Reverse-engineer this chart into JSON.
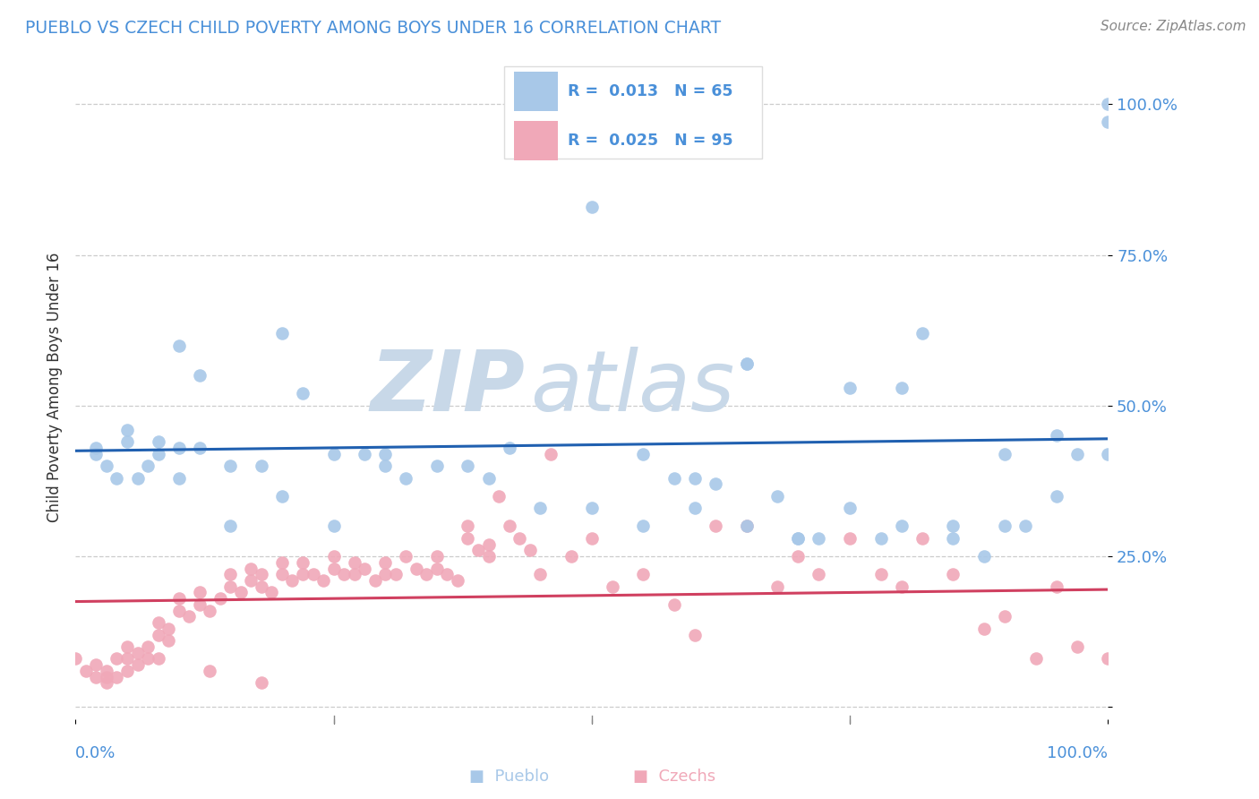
{
  "title": "PUEBLO VS CZECH CHILD POVERTY AMONG BOYS UNDER 16 CORRELATION CHART",
  "source": "Source: ZipAtlas.com",
  "ylabel": "Child Poverty Among Boys Under 16",
  "xlim": [
    0.0,
    1.0
  ],
  "ylim": [
    -0.02,
    1.08
  ],
  "pueblo_R": 0.013,
  "pueblo_N": 65,
  "czech_R": 0.025,
  "czech_N": 95,
  "pueblo_color": "#a8c8e8",
  "pueblo_line_color": "#2060b0",
  "czech_color": "#f0a8b8",
  "czech_line_color": "#d04060",
  "background_color": "#ffffff",
  "watermark_zip_color": "#c8d8e8",
  "watermark_atlas_color": "#c8d8e8",
  "grid_color": "#cccccc",
  "tick_color": "#4a90d9",
  "title_color": "#4a90d9",
  "ytick_positions": [
    0.0,
    0.25,
    0.5,
    0.75,
    1.0
  ],
  "ytick_labels": [
    "",
    "25.0%",
    "50.0%",
    "75.0%",
    "100.0%"
  ],
  "xtick_positions": [
    0.0,
    0.25,
    0.5,
    0.75,
    1.0
  ],
  "pueblo_trend_y0": 0.425,
  "pueblo_trend_y1": 0.445,
  "czech_trend_y0": 0.175,
  "czech_trend_y1": 0.195,
  "pueblo_points_x": [
    0.02,
    0.05,
    0.08,
    0.1,
    0.12,
    0.02,
    0.03,
    0.04,
    0.05,
    0.06,
    0.07,
    0.08,
    0.1,
    0.12,
    0.15,
    0.18,
    0.2,
    0.22,
    0.25,
    0.28,
    0.3,
    0.3,
    0.32,
    0.35,
    0.38,
    0.4,
    0.42,
    0.5,
    0.55,
    0.58,
    0.6,
    0.62,
    0.65,
    0.65,
    0.68,
    0.7,
    0.72,
    0.75,
    0.78,
    0.8,
    0.82,
    0.85,
    0.88,
    0.9,
    0.92,
    0.95,
    0.97,
    1.0,
    1.0,
    0.15,
    0.2,
    0.25,
    0.5,
    0.55,
    0.6,
    0.65,
    0.7,
    0.75,
    0.8,
    0.85,
    0.9,
    0.95,
    1.0,
    0.45,
    0.1
  ],
  "pueblo_points_y": [
    0.43,
    0.46,
    0.44,
    0.43,
    0.43,
    0.42,
    0.4,
    0.38,
    0.44,
    0.38,
    0.4,
    0.42,
    0.6,
    0.55,
    0.4,
    0.4,
    0.62,
    0.52,
    0.42,
    0.42,
    0.42,
    0.4,
    0.38,
    0.4,
    0.4,
    0.38,
    0.43,
    0.83,
    0.42,
    0.38,
    0.38,
    0.37,
    0.57,
    0.3,
    0.35,
    0.28,
    0.28,
    0.33,
    0.28,
    0.53,
    0.62,
    0.3,
    0.25,
    0.42,
    0.3,
    0.45,
    0.42,
    1.0,
    0.97,
    0.3,
    0.35,
    0.3,
    0.33,
    0.3,
    0.33,
    0.57,
    0.28,
    0.53,
    0.3,
    0.28,
    0.3,
    0.35,
    0.42,
    0.33,
    0.38
  ],
  "czech_points_x": [
    0.0,
    0.01,
    0.02,
    0.02,
    0.03,
    0.03,
    0.04,
    0.04,
    0.05,
    0.05,
    0.05,
    0.06,
    0.06,
    0.07,
    0.07,
    0.08,
    0.08,
    0.09,
    0.09,
    0.1,
    0.1,
    0.11,
    0.12,
    0.12,
    0.13,
    0.14,
    0.15,
    0.15,
    0.16,
    0.17,
    0.17,
    0.18,
    0.18,
    0.19,
    0.2,
    0.2,
    0.21,
    0.22,
    0.22,
    0.23,
    0.24,
    0.25,
    0.25,
    0.26,
    0.27,
    0.27,
    0.28,
    0.29,
    0.3,
    0.3,
    0.31,
    0.32,
    0.33,
    0.34,
    0.35,
    0.35,
    0.36,
    0.37,
    0.38,
    0.38,
    0.39,
    0.4,
    0.4,
    0.41,
    0.42,
    0.43,
    0.44,
    0.45,
    0.46,
    0.48,
    0.5,
    0.52,
    0.55,
    0.58,
    0.6,
    0.62,
    0.65,
    0.68,
    0.7,
    0.72,
    0.75,
    0.78,
    0.8,
    0.82,
    0.85,
    0.88,
    0.9,
    0.93,
    0.95,
    0.97,
    1.0,
    0.03,
    0.08,
    0.13,
    0.18
  ],
  "czech_points_y": [
    0.08,
    0.06,
    0.05,
    0.07,
    0.04,
    0.06,
    0.05,
    0.08,
    0.06,
    0.08,
    0.1,
    0.07,
    0.09,
    0.08,
    0.1,
    0.12,
    0.14,
    0.11,
    0.13,
    0.16,
    0.18,
    0.15,
    0.17,
    0.19,
    0.16,
    0.18,
    0.2,
    0.22,
    0.19,
    0.21,
    0.23,
    0.2,
    0.22,
    0.19,
    0.22,
    0.24,
    0.21,
    0.22,
    0.24,
    0.22,
    0.21,
    0.25,
    0.23,
    0.22,
    0.24,
    0.22,
    0.23,
    0.21,
    0.22,
    0.24,
    0.22,
    0.25,
    0.23,
    0.22,
    0.25,
    0.23,
    0.22,
    0.21,
    0.3,
    0.28,
    0.26,
    0.27,
    0.25,
    0.35,
    0.3,
    0.28,
    0.26,
    0.22,
    0.42,
    0.25,
    0.28,
    0.2,
    0.22,
    0.17,
    0.12,
    0.3,
    0.3,
    0.2,
    0.25,
    0.22,
    0.28,
    0.22,
    0.2,
    0.28,
    0.22,
    0.13,
    0.15,
    0.08,
    0.2,
    0.1,
    0.08,
    0.05,
    0.08,
    0.06,
    0.04
  ]
}
